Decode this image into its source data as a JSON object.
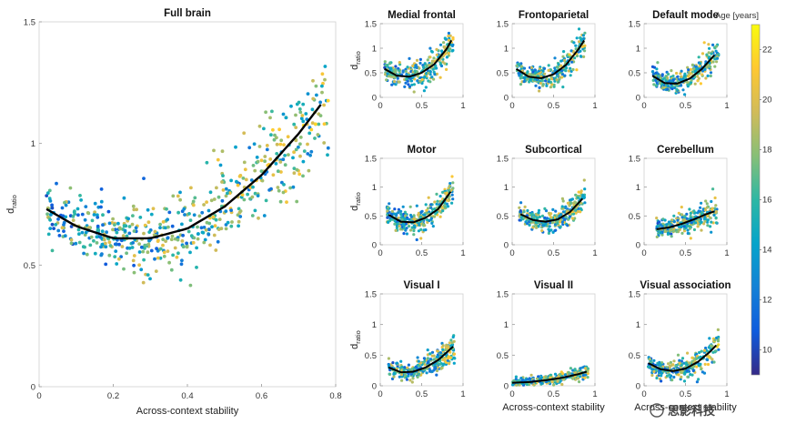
{
  "chart_data": [
    {
      "type": "scatter",
      "title": "Full brain",
      "xlabel": "Across-context stability",
      "ylabel": "d",
      "ylabel_sub": "ratio",
      "xlim": [
        0,
        0.8
      ],
      "ylim": [
        0,
        1.5
      ],
      "xticks": [
        "0",
        "0.2",
        "0.4",
        "0.6",
        "0.8"
      ],
      "yticks": [
        "0",
        "0.5",
        "1",
        "1.5"
      ],
      "fit_curve": {
        "x": [
          0.02,
          0.1,
          0.2,
          0.3,
          0.4,
          0.5,
          0.6,
          0.7,
          0.76
        ],
        "y": [
          0.73,
          0.66,
          0.61,
          0.61,
          0.65,
          0.74,
          0.87,
          1.04,
          1.16
        ]
      },
      "point_cloud": {
        "n": 600,
        "x_range": [
          0.02,
          0.78
        ],
        "y_spread": 0.07
      }
    },
    {
      "type": "scatter",
      "title": "Medial frontal",
      "xlabel": "",
      "ylabel": "d",
      "ylabel_sub": "ratio",
      "xlim": [
        0,
        1
      ],
      "ylim": [
        0,
        1.5
      ],
      "xticks": [
        "0",
        "0.5",
        "1"
      ],
      "yticks": [
        "0",
        "0.5",
        "1",
        "1.5"
      ],
      "fit_curve": {
        "x": [
          0.05,
          0.2,
          0.35,
          0.5,
          0.65,
          0.8,
          0.86
        ],
        "y": [
          0.58,
          0.44,
          0.42,
          0.5,
          0.67,
          0.98,
          1.16
        ]
      },
      "point_cloud": {
        "n": 300,
        "x_range": [
          0.05,
          0.88
        ],
        "y_spread": 0.12
      }
    },
    {
      "type": "scatter",
      "title": "Frontoparietal",
      "xlabel": "",
      "ylabel": "",
      "ylabel_sub": "",
      "xlim": [
        0,
        1
      ],
      "ylim": [
        0,
        1.5
      ],
      "xticks": [
        "0",
        "0.5",
        "1"
      ],
      "yticks": [
        "0",
        "0.5",
        "1",
        "1.5"
      ],
      "fit_curve": {
        "x": [
          0.05,
          0.2,
          0.35,
          0.5,
          0.65,
          0.8,
          0.87
        ],
        "y": [
          0.58,
          0.42,
          0.39,
          0.47,
          0.66,
          0.98,
          1.16
        ]
      },
      "point_cloud": {
        "n": 300,
        "x_range": [
          0.05,
          0.88
        ],
        "y_spread": 0.12
      }
    },
    {
      "type": "scatter",
      "title": "Default mode",
      "xlabel": "",
      "ylabel": "",
      "ylabel_sub": "",
      "xlim": [
        0,
        1
      ],
      "ylim": [
        0,
        1.5
      ],
      "xticks": [
        "0",
        "0.5",
        "1"
      ],
      "yticks": [
        "0",
        "0.5",
        "1",
        "1.5"
      ],
      "fit_curve": {
        "x": [
          0.1,
          0.25,
          0.4,
          0.55,
          0.7,
          0.85
        ],
        "y": [
          0.44,
          0.29,
          0.28,
          0.38,
          0.58,
          0.86
        ]
      },
      "point_cloud": {
        "n": 300,
        "x_range": [
          0.1,
          0.9
        ],
        "y_spread": 0.1
      }
    },
    {
      "type": "scatter",
      "title": "Motor",
      "xlabel": "",
      "ylabel": "d",
      "ylabel_sub": "ratio",
      "xlim": [
        0,
        1
      ],
      "ylim": [
        0,
        1.5
      ],
      "xticks": [
        "0",
        "0.5",
        "1"
      ],
      "yticks": [
        "0",
        "0.5",
        "1",
        "1.5"
      ],
      "fit_curve": {
        "x": [
          0.1,
          0.25,
          0.4,
          0.55,
          0.7,
          0.85
        ],
        "y": [
          0.52,
          0.4,
          0.39,
          0.47,
          0.62,
          0.92
        ]
      },
      "point_cloud": {
        "n": 300,
        "x_range": [
          0.08,
          0.88
        ],
        "y_spread": 0.1
      }
    },
    {
      "type": "scatter",
      "title": "Subcortical",
      "xlabel": "",
      "ylabel": "",
      "ylabel_sub": "",
      "xlim": [
        0,
        1
      ],
      "ylim": [
        0,
        1.5
      ],
      "xticks": [
        "0",
        "0.5",
        "1"
      ],
      "yticks": [
        "0",
        "0.5",
        "1",
        "1.5"
      ],
      "fit_curve": {
        "x": [
          0.1,
          0.25,
          0.4,
          0.55,
          0.7,
          0.85
        ],
        "y": [
          0.53,
          0.43,
          0.4,
          0.44,
          0.57,
          0.8
        ]
      },
      "point_cloud": {
        "n": 300,
        "x_range": [
          0.08,
          0.88
        ],
        "y_spread": 0.09
      }
    },
    {
      "type": "scatter",
      "title": "Cerebellum",
      "xlabel": "",
      "ylabel": "",
      "ylabel_sub": "",
      "xlim": [
        0,
        1
      ],
      "ylim": [
        0,
        1.5
      ],
      "xticks": [
        "0",
        "0.5",
        "1"
      ],
      "yticks": [
        "0",
        "0.5",
        "1",
        "1.5"
      ],
      "fit_curve": {
        "x": [
          0.15,
          0.3,
          0.45,
          0.6,
          0.75,
          0.85
        ],
        "y": [
          0.27,
          0.3,
          0.36,
          0.44,
          0.53,
          0.58
        ]
      },
      "point_cloud": {
        "n": 280,
        "x_range": [
          0.15,
          0.88
        ],
        "y_spread": 0.09
      }
    },
    {
      "type": "scatter",
      "title": "Visual I",
      "xlabel": "",
      "ylabel": "d",
      "ylabel_sub": "ratio",
      "xlim": [
        0,
        1
      ],
      "ylim": [
        0,
        1.5
      ],
      "xticks": [
        "0",
        "0.5",
        "1"
      ],
      "yticks": [
        "0",
        "0.5",
        "1",
        "1.5"
      ],
      "fit_curve": {
        "x": [
          0.1,
          0.25,
          0.4,
          0.55,
          0.7,
          0.88
        ],
        "y": [
          0.3,
          0.22,
          0.23,
          0.3,
          0.42,
          0.64
        ]
      },
      "point_cloud": {
        "n": 300,
        "x_range": [
          0.1,
          0.9
        ],
        "y_spread": 0.08
      }
    },
    {
      "type": "scatter",
      "title": "Visual II",
      "xlabel": "Across-context stability",
      "ylabel": "",
      "ylabel_sub": "",
      "xlim": [
        0,
        1
      ],
      "ylim": [
        0,
        1.5
      ],
      "xticks": [
        "0",
        "0.5",
        "1"
      ],
      "yticks": [
        "0",
        "0.5",
        "1",
        "1.5"
      ],
      "fit_curve": {
        "x": [
          0.0,
          0.2,
          0.4,
          0.6,
          0.8,
          0.9
        ],
        "y": [
          0.05,
          0.06,
          0.09,
          0.13,
          0.19,
          0.23
        ]
      },
      "point_cloud": {
        "n": 300,
        "x_range": [
          0.0,
          0.92
        ],
        "y_spread": 0.04
      }
    },
    {
      "type": "scatter",
      "title": "Visual association",
      "xlabel": "Across-context stability",
      "ylabel": "",
      "ylabel_sub": "",
      "xlim": [
        0,
        1
      ],
      "ylim": [
        0,
        1.5
      ],
      "xticks": [
        "0",
        "0.5",
        "1"
      ],
      "yticks": [
        "0",
        "0.5",
        "1",
        "1.5"
      ],
      "fit_curve": {
        "x": [
          0.05,
          0.2,
          0.35,
          0.5,
          0.65,
          0.8,
          0.87
        ],
        "y": [
          0.37,
          0.27,
          0.24,
          0.28,
          0.39,
          0.56,
          0.66
        ]
      },
      "point_cloud": {
        "n": 300,
        "x_range": [
          0.05,
          0.9
        ],
        "y_spread": 0.08
      }
    }
  ],
  "colorbar": {
    "label": "Age [years]",
    "min": 9,
    "max": 23,
    "ticks": [
      "10",
      "12",
      "14",
      "16",
      "18",
      "20",
      "22"
    ],
    "colormap": [
      "#352a87",
      "#0f5cdd",
      "#1481d6",
      "#06a4ca",
      "#2eb7a4",
      "#87bf77",
      "#d1bb59",
      "#fec832",
      "#f9fb0e"
    ]
  },
  "watermark": "思影科技"
}
